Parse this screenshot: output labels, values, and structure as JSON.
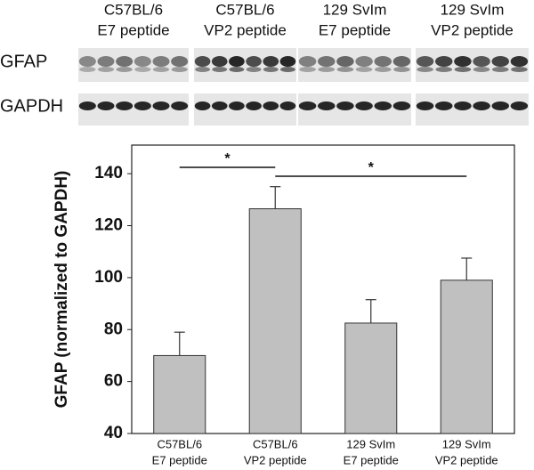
{
  "blot": {
    "columns": [
      [
        "C57BL/6",
        "E7 peptide"
      ],
      [
        "C57BL/6",
        "VP2 peptide"
      ],
      [
        "129 SvIm",
        "E7 peptide"
      ],
      [
        "129 SvIm",
        "VP2 peptide"
      ]
    ],
    "rows": [
      "GFAP",
      "GAPDH"
    ]
  },
  "chart_data": {
    "type": "bar",
    "y_label": "GFAP (normalized to GAPDH)",
    "categories": [
      [
        "C57BL/6",
        "E7 peptide"
      ],
      [
        "C57BL/6",
        "VP2 peptide"
      ],
      [
        "129 SvIm",
        "E7 peptide"
      ],
      [
        "129 SvIm",
        "VP2 peptide"
      ]
    ],
    "values": [
      70,
      126.5,
      82.5,
      99
    ],
    "errors": [
      9,
      8.5,
      9,
      8.5
    ],
    "color": "#c0c0c0",
    "ylim": [
      40,
      151
    ],
    "yticks": [
      40,
      60,
      80,
      100,
      120,
      140
    ],
    "annotations": [
      "*",
      "*"
    ]
  }
}
